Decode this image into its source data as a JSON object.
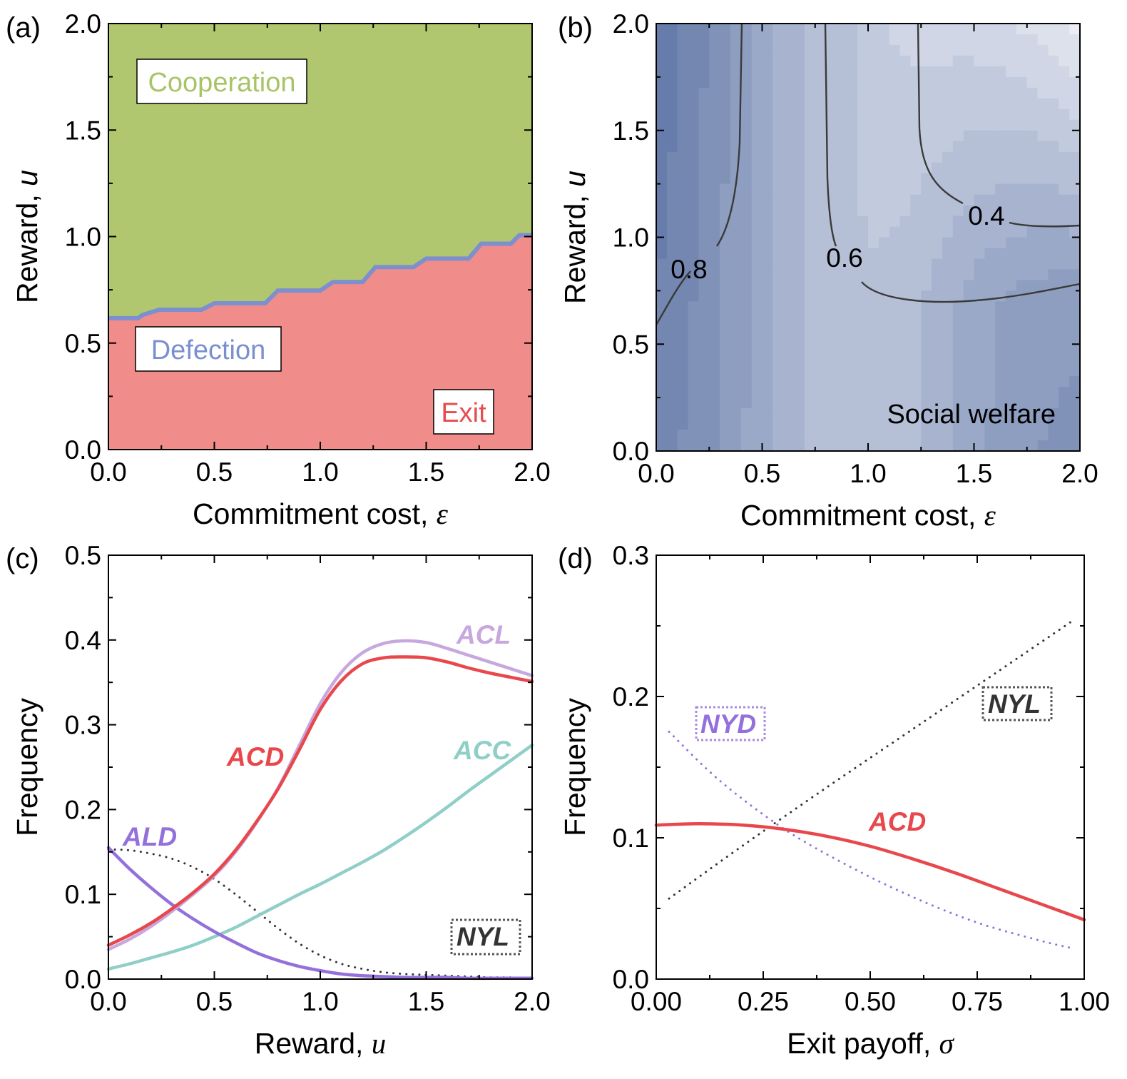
{
  "chart_data": [
    {
      "panel": "(a)",
      "type": "area",
      "xlabel": "Commitment cost, ",
      "xsym": "ε",
      "ylabel": "Reward, ",
      "ysym": "u",
      "xlim": [
        0,
        2
      ],
      "ylim": [
        0,
        2
      ],
      "xticks": [
        "0.0",
        "0.5",
        "1.0",
        "1.5",
        "2.0"
      ],
      "yticks": [
        "0.0",
        "0.5",
        "1.0",
        "1.5",
        "2.0"
      ],
      "boundary": {
        "x": [
          0,
          0.14,
          0.16,
          0.24,
          0.44,
          0.5,
          0.74,
          0.8,
          1.0,
          1.06,
          1.2,
          1.26,
          1.44,
          1.5,
          1.7,
          1.76,
          1.9,
          1.94,
          2.0
        ],
        "y": [
          0.61,
          0.61,
          0.625,
          0.65,
          0.65,
          0.68,
          0.68,
          0.74,
          0.74,
          0.78,
          0.78,
          0.85,
          0.85,
          0.89,
          0.89,
          0.96,
          0.96,
          1.0,
          1.0
        ]
      },
      "regions": [
        {
          "label": "Cooperation",
          "color": "#b0c76f",
          "text_color": "#a8c466"
        },
        {
          "label": "Defection",
          "color": "#7d8fcf",
          "text_color": "#7a8fd0"
        },
        {
          "label": "Exit",
          "color": "#f08c89",
          "text_color": "#e84c4c"
        }
      ]
    },
    {
      "panel": "(b)",
      "type": "heatmap",
      "title": "Social welfare",
      "xlabel": "Commitment cost, ",
      "xsym": "ε",
      "ylabel": "Reward, ",
      "ysym": "u",
      "xlim": [
        0,
        2
      ],
      "ylim": [
        0,
        2
      ],
      "xticks": [
        "0.0",
        "0.5",
        "1.0",
        "1.5",
        "2.0"
      ],
      "yticks": [
        "0.0",
        "0.5",
        "1.0",
        "1.5",
        "2.0"
      ],
      "colormap": [
        "#3f5a94",
        "#f7f8fb"
      ],
      "contour_labels": [
        "0.8",
        "0.6",
        "0.4"
      ]
    },
    {
      "panel": "(c)",
      "type": "line",
      "xlabel": "Reward, ",
      "xsym": "u",
      "ylabel": "Frequency",
      "xlim": [
        0,
        2
      ],
      "ylim": [
        0,
        0.5
      ],
      "xticks": [
        "0.0",
        "0.5",
        "1.0",
        "1.5",
        "2.0"
      ],
      "yticks": [
        "0.0",
        "0.1",
        "0.2",
        "0.3",
        "0.4",
        "0.5"
      ],
      "x": [
        0,
        0.1,
        0.2,
        0.3,
        0.4,
        0.5,
        0.6,
        0.7,
        0.8,
        0.9,
        1.0,
        1.1,
        1.2,
        1.3,
        1.4,
        1.5,
        1.6,
        1.7,
        1.8,
        1.9,
        2.0
      ],
      "series": [
        {
          "name": "ACL",
          "color": "#c7a8de",
          "style": "solid",
          "values": [
            0.035,
            0.047,
            0.062,
            0.08,
            0.1,
            0.122,
            0.15,
            0.185,
            0.225,
            0.275,
            0.325,
            0.362,
            0.385,
            0.396,
            0.399,
            0.397,
            0.39,
            0.382,
            0.374,
            0.366,
            0.358
          ]
        },
        {
          "name": "ACD",
          "color": "#e8474c",
          "style": "solid",
          "values": [
            0.04,
            0.052,
            0.066,
            0.083,
            0.102,
            0.124,
            0.152,
            0.186,
            0.224,
            0.27,
            0.318,
            0.352,
            0.372,
            0.379,
            0.38,
            0.379,
            0.374,
            0.367,
            0.361,
            0.356,
            0.351
          ]
        },
        {
          "name": "ACC",
          "color": "#8fcfc8",
          "style": "solid",
          "values": [
            0.012,
            0.018,
            0.025,
            0.032,
            0.04,
            0.05,
            0.061,
            0.074,
            0.087,
            0.1,
            0.112,
            0.125,
            0.138,
            0.152,
            0.168,
            0.185,
            0.203,
            0.222,
            0.24,
            0.258,
            0.276
          ]
        },
        {
          "name": "ALD",
          "color": "#9370db",
          "style": "solid",
          "values": [
            0.155,
            0.13,
            0.108,
            0.088,
            0.071,
            0.056,
            0.043,
            0.031,
            0.022,
            0.015,
            0.01,
            0.006,
            0.004,
            0.003,
            0.002,
            0.002,
            0.002,
            0.001,
            0.001,
            0.001,
            0.001
          ]
        },
        {
          "name": "NYL",
          "color": "#333333",
          "style": "dotted",
          "values": [
            0.153,
            0.152,
            0.148,
            0.142,
            0.132,
            0.118,
            0.1,
            0.08,
            0.06,
            0.042,
            0.028,
            0.018,
            0.012,
            0.008,
            0.006,
            0.005,
            0.004,
            0.003,
            0.002,
            0.002,
            0.001
          ]
        }
      ]
    },
    {
      "panel": "(d)",
      "type": "line",
      "xlabel": "Exit payoff, ",
      "xsym": "σ",
      "ylabel": "Frequency",
      "xlim": [
        0,
        1
      ],
      "ylim": [
        0,
        0.3
      ],
      "xticks": [
        "0.00",
        "0.25",
        "0.50",
        "0.75",
        "1.00"
      ],
      "yticks": [
        "0.0",
        "0.1",
        "0.2",
        "0.3"
      ],
      "series": [
        {
          "name": "NYL",
          "color": "#333333",
          "style": "dotted",
          "x": [
            0.03,
            0.2,
            0.4,
            0.6,
            0.8,
            0.97
          ],
          "values": [
            0.057,
            0.094,
            0.136,
            0.177,
            0.218,
            0.253
          ]
        },
        {
          "name": "NYD",
          "color": "#9370db",
          "style": "dotted",
          "x": [
            0.03,
            0.15,
            0.3,
            0.45,
            0.6,
            0.75,
            0.9,
            0.97
          ],
          "values": [
            0.175,
            0.14,
            0.106,
            0.08,
            0.058,
            0.04,
            0.027,
            0.022
          ]
        },
        {
          "name": "ACD",
          "color": "#e8474c",
          "style": "solid",
          "x": [
            0.0,
            0.1,
            0.2,
            0.3,
            0.4,
            0.5,
            0.6,
            0.7,
            0.8,
            0.9,
            1.0
          ],
          "values": [
            0.109,
            0.11,
            0.109,
            0.106,
            0.101,
            0.094,
            0.085,
            0.075,
            0.064,
            0.053,
            0.042
          ]
        }
      ]
    }
  ]
}
